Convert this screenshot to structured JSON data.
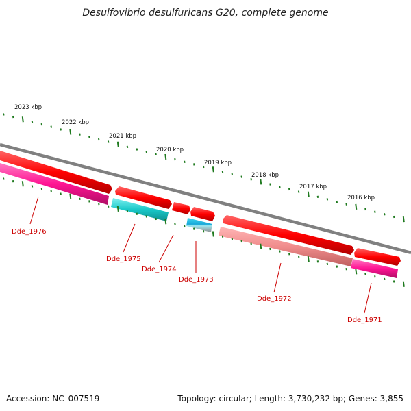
{
  "title": "Desulfovibrio desulfuricans G20, complete genome",
  "footer": {
    "accession": "Accession: NC_007519",
    "topology": "Topology: circular; Length: 3,730,232 bp; Genes: 3,855"
  },
  "scale_labels": [
    "2023 kbp",
    "2022 kbp",
    "2021 kbp",
    "2020 kbp",
    "2019 kbp",
    "2018 kbp",
    "2017 kbp",
    "2016 kbp"
  ],
  "genes": [
    {
      "id": "Dde_1976",
      "label": "Dde_1976"
    },
    {
      "id": "Dde_1975",
      "label": "Dde_1975"
    },
    {
      "id": "Dde_1974",
      "label": "Dde_1974"
    },
    {
      "id": "Dde_1973",
      "label": "Dde_1973"
    },
    {
      "id": "Dde_1972",
      "label": "Dde_1972"
    },
    {
      "id": "Dde_1971",
      "label": "Dde_1971"
    }
  ],
  "colors": {
    "backbone": "#808080",
    "tick": "#1f7a1f",
    "cds_forward": "#ff0000",
    "gene_cyan": "#19c8c8",
    "gene_magenta": "#ff1493",
    "gene_pink": "#ff8c8c",
    "label": "#cc0000"
  }
}
